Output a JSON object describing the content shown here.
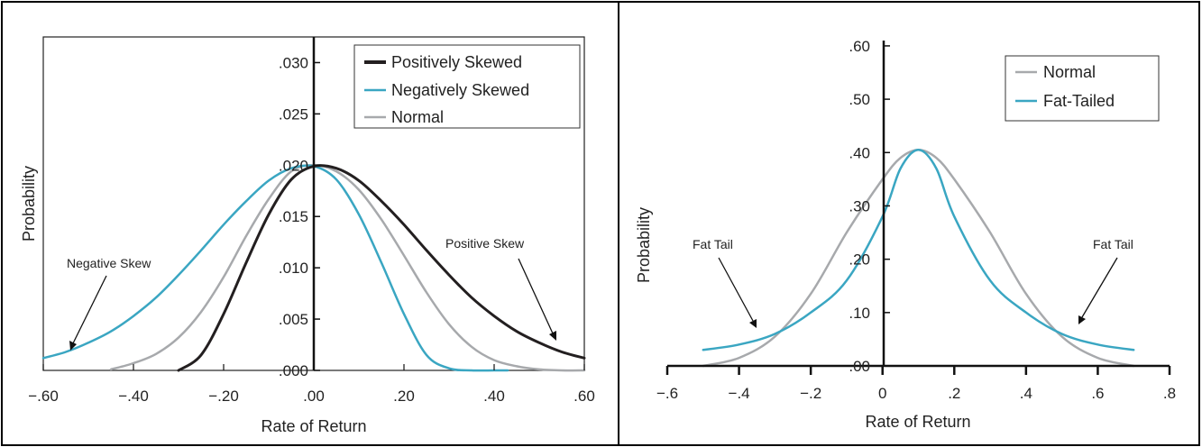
{
  "chart_data": [
    {
      "type": "line",
      "xlabel": "Rate of Return",
      "ylabel": "Probability",
      "xlim": [
        -0.6,
        0.6
      ],
      "ylim": [
        0,
        0.0325
      ],
      "x_ticks": [
        -0.6,
        -0.4,
        -0.2,
        0.0,
        0.2,
        0.4,
        0.6
      ],
      "x_tick_labels": [
        "−.60",
        "−.40",
        "−.20",
        ".00",
        ".20",
        ".40",
        ".60"
      ],
      "y_ticks": [
        0,
        0.005,
        0.01,
        0.015,
        0.02,
        0.025,
        0.03
      ],
      "y_tick_labels": [
        ".000",
        ".005",
        ".010",
        ".015",
        ".020",
        ".025",
        ".030"
      ],
      "legend": "top-right",
      "grid": false,
      "series": [
        {
          "name": "Positively Skewed",
          "color": "#231f20",
          "x": [
            -0.3,
            -0.25,
            -0.2,
            -0.15,
            -0.1,
            -0.05,
            0.0,
            0.05,
            0.1,
            0.15,
            0.2,
            0.25,
            0.3,
            0.35,
            0.4,
            0.45,
            0.5,
            0.55,
            0.6
          ],
          "y": [
            0.0,
            0.0015,
            0.0055,
            0.0105,
            0.0152,
            0.0186,
            0.0199,
            0.0197,
            0.0185,
            0.0165,
            0.0142,
            0.0117,
            0.0093,
            0.0071,
            0.0053,
            0.0038,
            0.0027,
            0.0018,
            0.0012
          ]
        },
        {
          "name": "Negatively Skewed",
          "color": "#3aa6c2",
          "x": [
            -0.6,
            -0.55,
            -0.5,
            -0.45,
            -0.4,
            -0.35,
            -0.3,
            -0.25,
            -0.2,
            -0.15,
            -0.1,
            -0.05,
            0.0,
            0.05,
            0.1,
            0.15,
            0.2,
            0.25,
            0.3,
            0.35,
            0.4,
            0.43
          ],
          "y": [
            0.0012,
            0.0018,
            0.0027,
            0.0038,
            0.0053,
            0.0071,
            0.0093,
            0.0117,
            0.0142,
            0.0165,
            0.0185,
            0.0197,
            0.0199,
            0.0186,
            0.0152,
            0.0105,
            0.0055,
            0.0015,
            0.0002,
            0.0,
            0.0,
            0.0
          ]
        },
        {
          "name": "Normal",
          "color": "#a7a9ac",
          "x": [
            -0.45,
            -0.4,
            -0.35,
            -0.3,
            -0.25,
            -0.2,
            -0.15,
            -0.1,
            -0.05,
            0.0,
            0.05,
            0.1,
            0.15,
            0.2,
            0.25,
            0.3,
            0.35,
            0.4,
            0.45,
            0.5,
            0.55,
            0.6
          ],
          "y": [
            0.0001,
            0.0007,
            0.0016,
            0.0032,
            0.0057,
            0.0091,
            0.0131,
            0.0167,
            0.0194,
            0.02,
            0.0194,
            0.0176,
            0.0147,
            0.0112,
            0.0076,
            0.0045,
            0.0023,
            0.001,
            0.0004,
            0.0001,
            0.0,
            0.0
          ]
        }
      ],
      "annotations": [
        {
          "text": "Negative Skew",
          "x": -0.54,
          "y": 0.0098
        },
        {
          "text": "Positive Skew",
          "x": 0.52,
          "y": 0.0115
        }
      ]
    },
    {
      "type": "line",
      "xlabel": "Rate of Return",
      "ylabel": "Probability",
      "xlim": [
        -0.6,
        0.8
      ],
      "ylim": [
        0,
        0.61
      ],
      "x_ticks": [
        -0.6,
        -0.4,
        -0.2,
        0.0,
        0.2,
        0.4,
        0.6,
        0.8
      ],
      "x_tick_labels": [
        "−.6",
        "−.4",
        "−.2",
        "0",
        ".2",
        ".4",
        ".6",
        ".8"
      ],
      "y_ticks": [
        0,
        0.1,
        0.2,
        0.3,
        0.4,
        0.5,
        0.6
      ],
      "y_tick_labels": [
        ".00",
        ".10",
        ".20",
        ".30",
        ".40",
        ".50",
        ".60"
      ],
      "legend": "top-right",
      "grid": false,
      "series": [
        {
          "name": "Normal",
          "color": "#a7a9ac",
          "x": [
            -0.5,
            -0.4,
            -0.3,
            -0.2,
            -0.1,
            0.0,
            0.05,
            0.1,
            0.15,
            0.2,
            0.3,
            0.4,
            0.5,
            0.6,
            0.7
          ],
          "y": [
            0.0,
            0.015,
            0.055,
            0.135,
            0.25,
            0.35,
            0.39,
            0.405,
            0.39,
            0.35,
            0.25,
            0.135,
            0.055,
            0.015,
            0.0
          ]
        },
        {
          "name": "Fat-Tailed",
          "color": "#3aa6c2",
          "x": [
            -0.5,
            -0.4,
            -0.3,
            -0.2,
            -0.1,
            0.0,
            0.05,
            0.1,
            0.15,
            0.2,
            0.3,
            0.4,
            0.5,
            0.6,
            0.7
          ],
          "y": [
            0.03,
            0.04,
            0.06,
            0.1,
            0.16,
            0.28,
            0.37,
            0.405,
            0.37,
            0.28,
            0.16,
            0.1,
            0.06,
            0.04,
            0.03
          ]
        }
      ],
      "annotations": [
        {
          "text": "Fat Tail",
          "x": -0.4,
          "y": 0.22
        },
        {
          "text": "Fat Tail",
          "x": 0.6,
          "y": 0.22
        }
      ]
    }
  ]
}
